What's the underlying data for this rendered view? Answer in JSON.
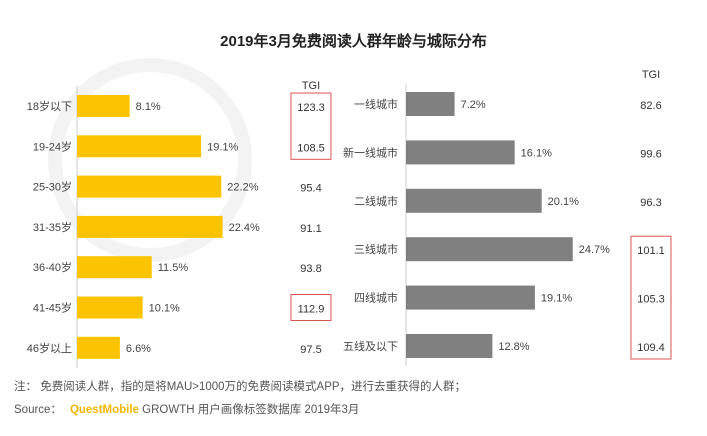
{
  "title": "2019年3月免费阅读人群年龄与城际分布",
  "note": "注：  免费阅读人群，指的是将MAU>1000万的免费阅读模式APP，进行去重获得的人群；",
  "source": {
    "label": "Source：",
    "brand": "QuestMobile",
    "text": "GROWTH 用户画像标签数据库 2019年3月"
  },
  "colors": {
    "age": "#fcc400",
    "city": "#808080",
    "highlight": "#d9534f"
  },
  "chart_data": [
    {
      "type": "bar",
      "orientation": "horizontal",
      "name": "年龄分布",
      "tgi_label": "TGI",
      "categories": [
        "18岁以下",
        "19-24岁",
        "25-30岁",
        "31-35岁",
        "36-40岁",
        "41-45岁",
        "46岁以上"
      ],
      "values": [
        8.1,
        19.1,
        22.2,
        22.4,
        11.5,
        10.1,
        6.6
      ],
      "labels": [
        "8.1%",
        "19.1%",
        "22.2%",
        "22.4%",
        "11.5%",
        "10.1%",
        "6.6%"
      ],
      "tgi": [
        "123.3",
        "108.5",
        "95.4",
        "91.1",
        "93.8",
        "112.9",
        "97.5"
      ],
      "highlight_groups": [
        [
          0,
          1
        ],
        [
          5
        ]
      ]
    },
    {
      "type": "bar",
      "orientation": "horizontal",
      "name": "城际分布",
      "tgi_label": "TGI",
      "categories": [
        "一线城市",
        "新一线城市",
        "二线城市",
        "三线城市",
        "四线城市",
        "五线及以下"
      ],
      "values": [
        7.2,
        16.1,
        20.1,
        24.7,
        19.1,
        12.8
      ],
      "labels": [
        "7.2%",
        "16.1%",
        "20.1%",
        "24.7%",
        "19.1%",
        "12.8%"
      ],
      "tgi": [
        "82.6",
        "99.6",
        "96.3",
        "101.1",
        "105.3",
        "109.4"
      ],
      "highlight_groups": [
        [
          3,
          4,
          5
        ]
      ]
    }
  ]
}
